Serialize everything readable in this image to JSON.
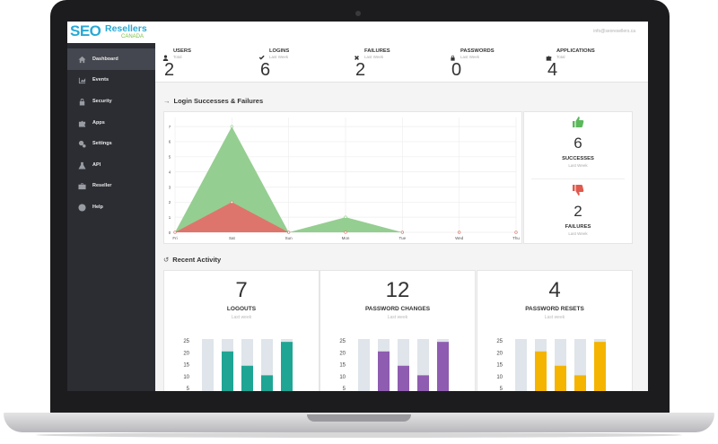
{
  "brand": {
    "seo": "SEO",
    "resellers": "Resellers",
    "country": "CANADA"
  },
  "topbar": {
    "user_email": "info@seoresellers.ca"
  },
  "sidebar": {
    "items": [
      {
        "label": "Dashboard",
        "icon": "home-icon",
        "active": true
      },
      {
        "label": "Events",
        "icon": "chart-icon"
      },
      {
        "label": "Security",
        "icon": "lock-icon"
      },
      {
        "label": "Apps",
        "icon": "puzzle-icon"
      },
      {
        "label": "Settings",
        "icon": "gear-icon"
      },
      {
        "label": "API",
        "icon": "flask-icon"
      },
      {
        "label": "Reseller",
        "icon": "briefcase-icon"
      },
      {
        "label": "Help",
        "icon": "question-icon"
      }
    ]
  },
  "stats": [
    {
      "label": "USERS",
      "sub": "Total",
      "value": "2",
      "icon": "user-icon"
    },
    {
      "label": "LOGINS",
      "sub": "Last Week",
      "value": "6",
      "icon": "check-icon"
    },
    {
      "label": "FAILURES",
      "sub": "Last Week",
      "value": "2",
      "icon": "close-icon"
    },
    {
      "label": "PASSWORDS",
      "sub": "Last Week",
      "value": "0",
      "icon": "lock-icon"
    },
    {
      "label": "APPLICATIONS",
      "sub": "Total",
      "value": "4",
      "icon": "puzzle-icon"
    }
  ],
  "login_section": {
    "title": "Login Successes & Failures"
  },
  "summary": {
    "successes": {
      "value": "6",
      "label": "SUCCESSES",
      "sub": "Last Week",
      "icon": "thumbs-up-icon"
    },
    "failures": {
      "value": "2",
      "label": "FAILURES",
      "sub": "Last Week",
      "icon": "thumbs-down-icon"
    }
  },
  "activity_section": {
    "title": "Recent Activity"
  },
  "cards": [
    {
      "value": "7",
      "label": "LOGOUTS",
      "sub": "Last week",
      "color": "#1fa594",
      "bars": [
        0,
        20,
        14,
        10,
        24
      ]
    },
    {
      "value": "12",
      "label": "PASSWORD CHANGES",
      "sub": "Last week",
      "color": "#8e5cb0",
      "bars": [
        0,
        20,
        14,
        10,
        24
      ]
    },
    {
      "value": "4",
      "label": "PASSWORD RESETS",
      "sub": "Last week",
      "color": "#f4b400",
      "bars": [
        0,
        20,
        14,
        10,
        24
      ]
    }
  ],
  "mini_axis": [
    "25",
    "20",
    "15",
    "10",
    "5"
  ],
  "chart_data": {
    "type": "area",
    "categories": [
      "Fri",
      "Sat",
      "Sun",
      "Mon",
      "Tue",
      "Wed",
      "Thu"
    ],
    "series": [
      {
        "values": [
          0,
          7,
          0,
          1,
          0,
          0,
          0
        ],
        "color": "#8fcb8b"
      },
      {
        "values": [
          0,
          2,
          0,
          0,
          0,
          0,
          0
        ],
        "color": "#e2706a"
      }
    ],
    "yticks": [
      "0",
      "1",
      "2",
      "3",
      "4",
      "5",
      "6",
      "7"
    ],
    "ylim": [
      0,
      7.6
    ],
    "grid": true
  },
  "colors": {
    "success": "#5cb85c",
    "failure": "#e05a4f",
    "sidebar": "#2b2d33"
  }
}
